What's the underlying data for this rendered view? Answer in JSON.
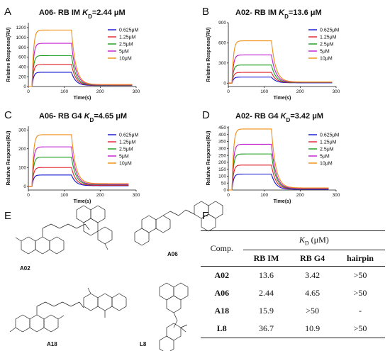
{
  "panels": [
    {
      "letter": "A",
      "title_prefix": "A06- RB IM ",
      "kd_symbol": "K",
      "kd_sub": "D",
      "title_value": "=2.44 μM",
      "ylabel": "Relative Response(RU)",
      "xlabel": "Time(s)",
      "yticks": [
        "0",
        "200",
        "400",
        "600",
        "800",
        "1000",
        "1200"
      ],
      "xticks": [
        "0",
        "100",
        "200",
        "300"
      ]
    },
    {
      "letter": "B",
      "title_prefix": "A02- RB IM ",
      "kd_symbol": "K",
      "kd_sub": "D",
      "title_value": "=13.6 μM",
      "ylabel": "Relative Response(RU)",
      "xlabel": "Time(s)",
      "yticks": [
        "0",
        "300",
        "600",
        "900"
      ],
      "xticks": [
        "0",
        "100",
        "200",
        "300"
      ]
    },
    {
      "letter": "C",
      "title_prefix": "A06- RB G4 ",
      "kd_symbol": "K",
      "kd_sub": "D",
      "title_value": "=4.65 μM",
      "ylabel": "Relative Response(RU)",
      "xlabel": "Time(s)",
      "yticks": [
        "0",
        "100",
        "200",
        "300"
      ],
      "xticks": [
        "0",
        "100",
        "200",
        "300"
      ]
    },
    {
      "letter": "D",
      "title_prefix": "A02- RB G4 ",
      "kd_symbol": "K",
      "kd_sub": "D",
      "title_value": "=3.42 μM",
      "ylabel": "Relative Response(RU)",
      "xlabel": "Time(s)",
      "yticks": [
        "0",
        "50",
        "100",
        "150",
        "200",
        "250",
        "300",
        "350",
        "400",
        "450"
      ],
      "xticks": [
        "0",
        "100",
        "200",
        "300"
      ]
    }
  ],
  "legend": [
    "0.625μM",
    "1.25μM",
    "2.5μM",
    "5μM",
    "10μM"
  ],
  "series_colors": [
    "#1010d0",
    "#e0202a",
    "#1a9a1a",
    "#c01ad0",
    "#f08c10"
  ],
  "chart_data": [
    {
      "type": "line",
      "panel": "A",
      "xlim": [
        0,
        300
      ],
      "ylim": [
        0,
        1300
      ],
      "inject_start": 10,
      "inject_end": 120,
      "x_end": 290,
      "series": [
        {
          "name": "0.625μM",
          "plateau": 290,
          "tail": 20
        },
        {
          "name": "1.25μM",
          "plateau": 450,
          "tail": 25
        },
        {
          "name": "2.5μM",
          "plateau": 630,
          "tail": 30
        },
        {
          "name": "5μM",
          "plateau": 880,
          "tail": 35
        },
        {
          "name": "10μM",
          "plateau": 1150,
          "tail": 40
        }
      ]
    },
    {
      "type": "line",
      "panel": "B",
      "xlim": [
        0,
        300
      ],
      "ylim": [
        -50,
        900
      ],
      "inject_start": 10,
      "inject_end": 120,
      "x_end": 290,
      "series": [
        {
          "name": "0.625μM",
          "plateau": 90,
          "tail": 5
        },
        {
          "name": "1.25μM",
          "plateau": 160,
          "tail": 8
        },
        {
          "name": "2.5μM",
          "plateau": 270,
          "tail": 10
        },
        {
          "name": "5μM",
          "plateau": 420,
          "tail": 14
        },
        {
          "name": "10μM",
          "plateau": 630,
          "tail": 18
        }
      ]
    },
    {
      "type": "line",
      "panel": "C",
      "xlim": [
        0,
        300
      ],
      "ylim": [
        -20,
        320
      ],
      "inject_start": 10,
      "inject_end": 120,
      "x_end": 280,
      "series": [
        {
          "name": "0.625μM",
          "plateau": 60,
          "tail": 3
        },
        {
          "name": "1.25μM",
          "plateau": 100,
          "tail": 5
        },
        {
          "name": "2.5μM",
          "plateau": 155,
          "tail": 8
        },
        {
          "name": "5μM",
          "plateau": 210,
          "tail": 10
        },
        {
          "name": "10μM",
          "plateau": 275,
          "tail": 14
        }
      ]
    },
    {
      "type": "line",
      "panel": "D",
      "xlim": [
        0,
        300
      ],
      "ylim": [
        0,
        460
      ],
      "inject_start": 10,
      "inject_end": 120,
      "x_end": 280,
      "series": [
        {
          "name": "0.625μM",
          "plateau": 115,
          "tail": 5
        },
        {
          "name": "1.25μM",
          "plateau": 180,
          "tail": 8
        },
        {
          "name": "2.5μM",
          "plateau": 260,
          "tail": 10
        },
        {
          "name": "5μM",
          "plateau": 330,
          "tail": 12
        },
        {
          "name": "10μM",
          "plateau": 440,
          "tail": 15
        }
      ]
    }
  ],
  "section_e": {
    "letter": "E",
    "molecules": [
      "A02",
      "A06",
      "A18",
      "L8"
    ]
  },
  "section_f": {
    "letter": "F",
    "kd_symbol": "K",
    "kd_sub": "D",
    "kd_unit": "(μM)",
    "comp_header": "Comp.",
    "columns": [
      "RB IM",
      "RB G4",
      "hairpin"
    ],
    "rows": [
      {
        "comp": "A02",
        "values": [
          "13.6",
          "3.42",
          ">50"
        ]
      },
      {
        "comp": "A06",
        "values": [
          "2.44",
          "4.65",
          ">50"
        ]
      },
      {
        "comp": "A18",
        "values": [
          "15.9",
          ">50",
          "-"
        ]
      },
      {
        "comp": "L8",
        "values": [
          "36.7",
          "10.9",
          ">50"
        ]
      }
    ]
  }
}
